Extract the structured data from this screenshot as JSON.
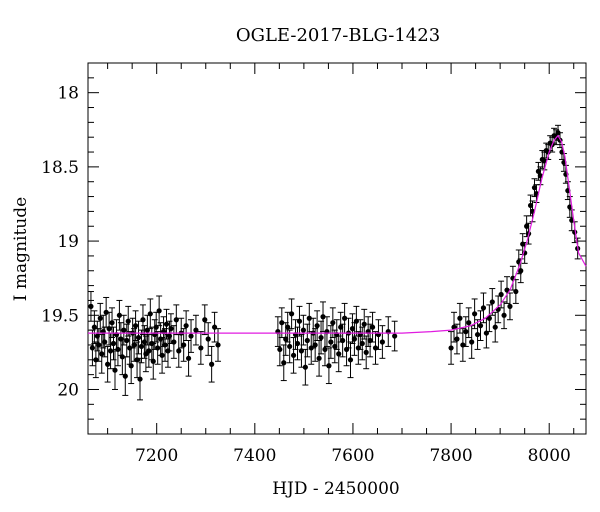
{
  "chart_data": {
    "type": "scatter",
    "title": "OGLE-2017-BLG-1423",
    "xlabel": "HJD - 2450000",
    "ylabel": "I magnitude",
    "xlim": [
      7060,
      8075
    ],
    "ylim": [
      20.3,
      17.8
    ],
    "y_inverted": true,
    "x_ticks": [
      {
        "value": 7200,
        "label": "7200"
      },
      {
        "value": 7400,
        "label": "7400"
      },
      {
        "value": 7600,
        "label": "7600"
      },
      {
        "value": 7800,
        "label": "7800"
      },
      {
        "value": 8000,
        "label": "8000"
      }
    ],
    "y_ticks": [
      {
        "value": 18,
        "label": "18"
      },
      {
        "value": 18.5,
        "label": "18.5"
      },
      {
        "value": 19,
        "label": "19"
      },
      {
        "value": 19.5,
        "label": "19.5"
      },
      {
        "value": 20,
        "label": "20"
      }
    ],
    "grid": false,
    "colors": {
      "points": "#000000",
      "model": "#e01be0"
    },
    "series": [
      {
        "kind": "points-with-errorbars",
        "points": [
          [
            7066,
            19.44,
            0.1
          ],
          [
            7069,
            19.72,
            0.12
          ],
          [
            7073,
            19.58,
            0.11
          ],
          [
            7076,
            19.8,
            0.12
          ],
          [
            7079,
            19.64,
            0.1
          ],
          [
            7082,
            19.7,
            0.11
          ],
          [
            7085,
            19.52,
            0.1
          ],
          [
            7088,
            19.76,
            0.13
          ],
          [
            7091,
            19.61,
            0.11
          ],
          [
            7094,
            19.68,
            0.1
          ],
          [
            7097,
            19.48,
            0.1
          ],
          [
            7100,
            19.83,
            0.12
          ],
          [
            7103,
            19.59,
            0.11
          ],
          [
            7106,
            19.74,
            0.12
          ],
          [
            7109,
            19.55,
            0.1
          ],
          [
            7112,
            19.69,
            0.11
          ],
          [
            7115,
            19.87,
            0.13
          ],
          [
            7118,
            19.63,
            0.1
          ],
          [
            7121,
            19.73,
            0.11
          ],
          [
            7124,
            19.5,
            0.1
          ],
          [
            7127,
            19.66,
            0.11
          ],
          [
            7130,
            19.78,
            0.12
          ],
          [
            7133,
            19.6,
            0.1
          ],
          [
            7136,
            19.91,
            0.13
          ],
          [
            7139,
            19.67,
            0.11
          ],
          [
            7142,
            19.54,
            0.1
          ],
          [
            7145,
            19.72,
            0.11
          ],
          [
            7148,
            19.84,
            0.12
          ],
          [
            7151,
            19.62,
            0.1
          ],
          [
            7154,
            19.7,
            0.11
          ],
          [
            7157,
            19.57,
            0.1
          ],
          [
            7160,
            19.8,
            0.12
          ],
          [
            7163,
            19.65,
            0.11
          ],
          [
            7166,
            19.93,
            0.14
          ],
          [
            7169,
            19.71,
            0.11
          ],
          [
            7172,
            19.53,
            0.1
          ],
          [
            7175,
            19.68,
            0.11
          ],
          [
            7178,
            19.76,
            0.12
          ],
          [
            7181,
            19.6,
            0.1
          ],
          [
            7184,
            19.74,
            0.11
          ],
          [
            7187,
            19.49,
            0.1
          ],
          [
            7190,
            19.69,
            0.11
          ],
          [
            7193,
            19.81,
            0.12
          ],
          [
            7196,
            19.63,
            0.1
          ],
          [
            7199,
            19.58,
            0.1
          ],
          [
            7202,
            19.72,
            0.11
          ],
          [
            7205,
            19.47,
            0.1
          ],
          [
            7208,
            19.66,
            0.11
          ],
          [
            7211,
            19.77,
            0.12
          ],
          [
            7214,
            19.61,
            0.1
          ],
          [
            7217,
            19.7,
            0.11
          ],
          [
            7220,
            19.56,
            0.1
          ],
          [
            7223,
            19.74,
            0.11
          ],
          [
            7226,
            19.64,
            0.1
          ],
          [
            7229,
            19.59,
            0.1
          ],
          [
            7235,
            19.68,
            0.11
          ],
          [
            7240,
            19.53,
            0.1
          ],
          [
            7245,
            19.74,
            0.11
          ],
          [
            7250,
            19.62,
            0.1
          ],
          [
            7255,
            19.7,
            0.11
          ],
          [
            7260,
            19.57,
            0.1
          ],
          [
            7265,
            19.79,
            0.12
          ],
          [
            7270,
            19.64,
            0.11
          ],
          [
            7280,
            19.6,
            0.1
          ],
          [
            7290,
            19.72,
            0.11
          ],
          [
            7298,
            19.53,
            0.1
          ],
          [
            7305,
            19.66,
            0.11
          ],
          [
            7312,
            19.83,
            0.12
          ],
          [
            7318,
            19.58,
            0.1
          ],
          [
            7325,
            19.7,
            0.11
          ],
          [
            7447,
            19.61,
            0.1
          ],
          [
            7451,
            19.73,
            0.11
          ],
          [
            7455,
            19.55,
            0.1
          ],
          [
            7459,
            19.82,
            0.12
          ],
          [
            7463,
            19.66,
            0.11
          ],
          [
            7467,
            19.58,
            0.1
          ],
          [
            7471,
            19.71,
            0.11
          ],
          [
            7475,
            19.49,
            0.1
          ],
          [
            7479,
            19.77,
            0.12
          ],
          [
            7483,
            19.63,
            0.1
          ],
          [
            7487,
            19.69,
            0.11
          ],
          [
            7491,
            19.54,
            0.1
          ],
          [
            7495,
            19.74,
            0.11
          ],
          [
            7499,
            19.6,
            0.1
          ],
          [
            7503,
            19.85,
            0.12
          ],
          [
            7507,
            19.67,
            0.11
          ],
          [
            7511,
            19.52,
            0.1
          ],
          [
            7515,
            19.72,
            0.11
          ],
          [
            7519,
            19.62,
            0.1
          ],
          [
            7523,
            19.7,
            0.11
          ],
          [
            7527,
            19.57,
            0.1
          ],
          [
            7531,
            19.79,
            0.12
          ],
          [
            7535,
            19.65,
            0.11
          ],
          [
            7539,
            19.51,
            0.1
          ],
          [
            7543,
            19.73,
            0.11
          ],
          [
            7547,
            19.61,
            0.1
          ],
          [
            7551,
            19.84,
            0.12
          ],
          [
            7555,
            19.68,
            0.11
          ],
          [
            7559,
            19.55,
            0.1
          ],
          [
            7563,
            19.71,
            0.11
          ],
          [
            7567,
            19.63,
            0.1
          ],
          [
            7571,
            19.76,
            0.12
          ],
          [
            7575,
            19.58,
            0.1
          ],
          [
            7579,
            19.67,
            0.11
          ],
          [
            7583,
            19.52,
            0.1
          ],
          [
            7587,
            19.73,
            0.11
          ],
          [
            7591,
            19.62,
            0.1
          ],
          [
            7595,
            19.8,
            0.12
          ],
          [
            7599,
            19.59,
            0.1
          ],
          [
            7603,
            19.66,
            0.11
          ],
          [
            7607,
            19.54,
            0.1
          ],
          [
            7611,
            19.72,
            0.11
          ],
          [
            7615,
            19.63,
            0.1
          ],
          [
            7619,
            19.69,
            0.11
          ],
          [
            7623,
            19.56,
            0.1
          ],
          [
            7627,
            19.75,
            0.11
          ],
          [
            7631,
            19.61,
            0.1
          ],
          [
            7635,
            19.67,
            0.11
          ],
          [
            7640,
            19.58,
            0.1
          ],
          [
            7646,
            19.72,
            0.11
          ],
          [
            7652,
            19.63,
            0.1
          ],
          [
            7660,
            19.68,
            0.11
          ],
          [
            7672,
            19.61,
            0.1
          ],
          [
            7685,
            19.64,
            0.1
          ],
          [
            7800,
            19.72,
            0.11
          ],
          [
            7806,
            19.58,
            0.1
          ],
          [
            7812,
            19.66,
            0.1
          ],
          [
            7818,
            19.52,
            0.1
          ],
          [
            7824,
            19.7,
            0.11
          ],
          [
            7830,
            19.61,
            0.1
          ],
          [
            7836,
            19.55,
            0.1
          ],
          [
            7842,
            19.68,
            0.11
          ],
          [
            7848,
            19.49,
            0.1
          ],
          [
            7854,
            19.63,
            0.1
          ],
          [
            7860,
            19.57,
            0.1
          ],
          [
            7866,
            19.45,
            0.1
          ],
          [
            7872,
            19.62,
            0.1
          ],
          [
            7878,
            19.52,
            0.09
          ],
          [
            7884,
            19.41,
            0.09
          ],
          [
            7890,
            19.58,
            0.1
          ],
          [
            7896,
            19.46,
            0.09
          ],
          [
            7902,
            19.36,
            0.09
          ],
          [
            7908,
            19.5,
            0.09
          ],
          [
            7914,
            19.33,
            0.09
          ],
          [
            7920,
            19.44,
            0.09
          ],
          [
            7926,
            19.25,
            0.08
          ],
          [
            7932,
            19.34,
            0.08
          ],
          [
            7938,
            19.14,
            0.08
          ],
          [
            7942,
            19.2,
            0.08
          ],
          [
            7946,
            19.02,
            0.07
          ],
          [
            7950,
            19.08,
            0.07
          ],
          [
            7954,
            18.9,
            0.07
          ],
          [
            7958,
            18.95,
            0.07
          ],
          [
            7962,
            18.76,
            0.07
          ],
          [
            7966,
            18.8,
            0.07
          ],
          [
            7970,
            18.64,
            0.06
          ],
          [
            7974,
            18.68,
            0.06
          ],
          [
            7978,
            18.53,
            0.06
          ],
          [
            7982,
            18.56,
            0.06
          ],
          [
            7986,
            18.45,
            0.06
          ],
          [
            7990,
            18.46,
            0.06
          ],
          [
            7994,
            18.39,
            0.05
          ],
          [
            7998,
            18.4,
            0.05
          ],
          [
            8002,
            18.34,
            0.05
          ],
          [
            8006,
            18.35,
            0.05
          ],
          [
            8010,
            18.29,
            0.05
          ],
          [
            8014,
            18.3,
            0.05
          ],
          [
            8018,
            18.27,
            0.05
          ],
          [
            8022,
            18.32,
            0.05
          ],
          [
            8026,
            18.4,
            0.05
          ],
          [
            8030,
            18.47,
            0.06
          ],
          [
            8034,
            18.55,
            0.06
          ],
          [
            8038,
            18.66,
            0.06
          ],
          [
            8042,
            18.77,
            0.07
          ],
          [
            8046,
            18.86,
            0.07
          ],
          [
            8052,
            18.94,
            0.07
          ],
          [
            8058,
            19.05,
            0.07
          ]
        ]
      },
      {
        "kind": "model-curve",
        "x": [
          7060,
          7300,
          7500,
          7700,
          7760,
          7800,
          7840,
          7870,
          7900,
          7920,
          7940,
          7955,
          7970,
          7985,
          8000,
          8010,
          8018,
          8025,
          8032,
          8040,
          8050,
          8060,
          8075
        ],
        "y": [
          19.62,
          19.62,
          19.62,
          19.62,
          19.61,
          19.6,
          19.57,
          19.52,
          19.43,
          19.33,
          19.16,
          19.0,
          18.8,
          18.58,
          18.4,
          18.32,
          18.29,
          18.33,
          18.43,
          18.62,
          18.86,
          19.08,
          19.17
        ]
      }
    ]
  }
}
